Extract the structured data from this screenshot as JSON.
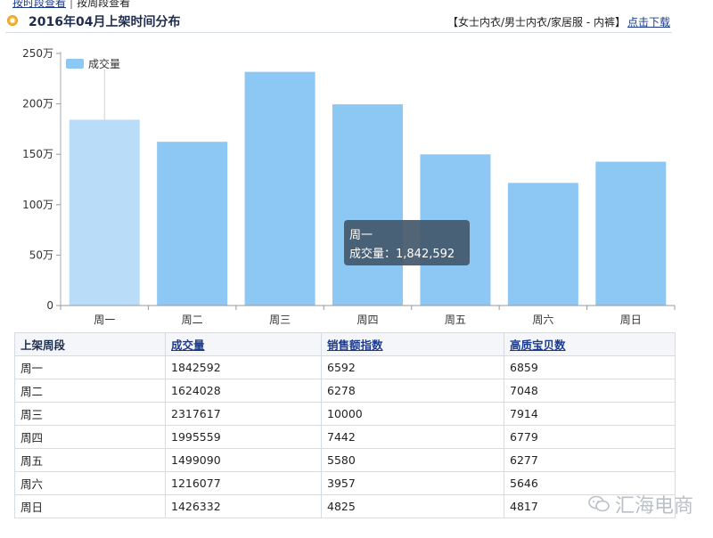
{
  "top_links": {
    "link1": "按时段查看",
    "separator": "|",
    "link2": "按周段查看"
  },
  "header": {
    "title": "2016年04月上架时间分布",
    "category": "【女士内衣/男士内衣/家居服 - 内裤】",
    "download": "点击下载"
  },
  "colors": {
    "bar": "#8dc8f5",
    "bar_highlight": "#b9dcf8",
    "tooltip_bg": "#42586a"
  },
  "chart_data": {
    "type": "bar",
    "categories": [
      "周一",
      "周二",
      "周三",
      "周四",
      "周五",
      "周六",
      "周日"
    ],
    "series": [
      {
        "name": "成交量",
        "values": [
          1842592,
          1624028,
          2317617,
          1995559,
          1499090,
          1216077,
          1426332
        ]
      }
    ],
    "ylim": [
      0,
      2500000
    ],
    "yticks": [
      "0",
      "50万",
      "100万",
      "150万",
      "200万",
      "250万"
    ],
    "legend": "top-left",
    "tooltip": {
      "category": "周一",
      "label": "成交量：1,842,592"
    }
  },
  "table": {
    "headers": [
      "上架周段",
      "成交量",
      "销售额指数",
      "高质宝贝数"
    ],
    "rows": [
      [
        "周一",
        "1842592",
        "6592",
        "6859"
      ],
      [
        "周二",
        "1624028",
        "6278",
        "7048"
      ],
      [
        "周三",
        "2317617",
        "10000",
        "7914"
      ],
      [
        "周四",
        "1995559",
        "7442",
        "6779"
      ],
      [
        "周五",
        "1499090",
        "5580",
        "6277"
      ],
      [
        "周六",
        "1216077",
        "3957",
        "5646"
      ],
      [
        "周日",
        "1426332",
        "4825",
        "4817"
      ]
    ]
  },
  "watermark": {
    "text": "汇海电商"
  }
}
